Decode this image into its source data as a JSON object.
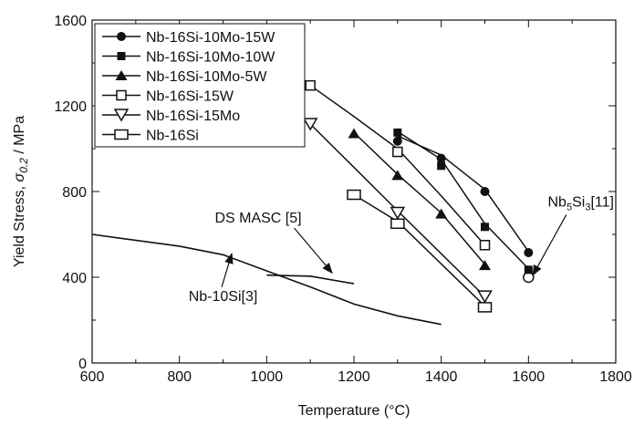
{
  "chart_data": {
    "type": "line",
    "title": "",
    "xlabel": "Temperature (°C)",
    "ylabel": "Yield Stress, σ0.2 / MPa",
    "ylabel_parts": {
      "prefix": "Yield Stress, ",
      "symbol": "σ",
      "subscript": "0.2",
      "suffix": " / MPa"
    },
    "xlim": [
      600,
      1800
    ],
    "ylim": [
      0,
      1600
    ],
    "x_ticks": [
      600,
      800,
      1000,
      1200,
      1400,
      1600,
      1800
    ],
    "y_ticks": [
      0,
      400,
      800,
      1200,
      1600
    ],
    "x_tick_labels": [
      "600",
      "800",
      "1000",
      "1200",
      "1400",
      "1600",
      "1800"
    ],
    "y_tick_labels": [
      "0",
      "400",
      "800",
      "1200",
      "1600"
    ],
    "grid": false,
    "legend_position": "top-left",
    "series": [
      {
        "name": "Nb-16Si-10Mo-15W",
        "marker": "circle-filled",
        "points": [
          [
            1300,
            1035
          ],
          [
            1400,
            955
          ],
          [
            1500,
            800
          ],
          [
            1600,
            515
          ]
        ],
        "fit": [
          [
            1300,
            1060
          ],
          [
            1400,
            970
          ],
          [
            1500,
            810
          ],
          [
            1600,
            520
          ]
        ]
      },
      {
        "name": "Nb-16Si-10Mo-10W",
        "marker": "square-filled",
        "points": [
          [
            1300,
            1075
          ],
          [
            1400,
            920
          ],
          [
            1500,
            635
          ],
          [
            1600,
            435
          ]
        ],
        "fit": [
          [
            1300,
            1080
          ],
          [
            1400,
            950
          ],
          [
            1500,
            650
          ],
          [
            1600,
            440
          ]
        ]
      },
      {
        "name": "Nb-16Si-10Mo-5W",
        "marker": "triangle-up-filled",
        "points": [
          [
            1200,
            1070
          ],
          [
            1300,
            875
          ],
          [
            1400,
            695
          ],
          [
            1500,
            455
          ]
        ],
        "fit": [
          [
            1200,
            1075
          ],
          [
            1300,
            880
          ],
          [
            1400,
            700
          ],
          [
            1500,
            460
          ]
        ]
      },
      {
        "name": "Nb-16Si-15W",
        "marker": "square-open",
        "points": [
          [
            1100,
            1295
          ],
          [
            1300,
            985
          ],
          [
            1500,
            550
          ]
        ],
        "fit": [
          [
            1100,
            1295
          ],
          [
            1200,
            1150
          ],
          [
            1300,
            1000
          ],
          [
            1400,
            780
          ],
          [
            1500,
            550
          ]
        ]
      },
      {
        "name": "Nb-16Si-15Mo",
        "marker": "triangle-down-open",
        "points": [
          [
            1100,
            1115
          ],
          [
            1300,
            700
          ],
          [
            1500,
            310
          ]
        ],
        "fit": [
          [
            1100,
            1115
          ],
          [
            1300,
            710
          ],
          [
            1500,
            310
          ]
        ]
      },
      {
        "name": "Nb-16Si",
        "marker": "square-open-wide",
        "points": [
          [
            1200,
            785
          ],
          [
            1300,
            650
          ],
          [
            1500,
            260
          ]
        ],
        "fit": [
          [
            1200,
            785
          ],
          [
            1300,
            660
          ],
          [
            1500,
            265
          ]
        ]
      }
    ],
    "reference_curves": [
      {
        "name": "Nb-10Si[3]",
        "points": [
          [
            600,
            600
          ],
          [
            800,
            545
          ],
          [
            900,
            505
          ],
          [
            1000,
            430
          ],
          [
            1100,
            355
          ],
          [
            1200,
            275
          ],
          [
            1300,
            220
          ],
          [
            1400,
            180
          ]
        ]
      },
      {
        "name": "DS MASC [5]",
        "points": [
          [
            1000,
            410
          ],
          [
            1100,
            405
          ],
          [
            1200,
            370
          ]
        ]
      },
      {
        "name": "Nb5Si3[11]",
        "marker": "circle-open",
        "points": [
          [
            1600,
            400
          ]
        ]
      }
    ],
    "annotations": [
      {
        "label": "DS MASC [5]",
        "at": [
          1080,
          655
        ],
        "points_to": [
          1150,
          420
        ]
      },
      {
        "label": "Nb-10Si[3]",
        "at": [
          900,
          290
        ],
        "points_to": [
          920,
          510
        ]
      },
      {
        "label_parts": {
          "base": "Nb",
          "sub1": "5",
          "mid": "Si",
          "sub2": "3",
          "suffix": "[11]"
        },
        "at": [
          1720,
          730
        ],
        "points_to": [
          1610,
          410
        ]
      }
    ]
  }
}
